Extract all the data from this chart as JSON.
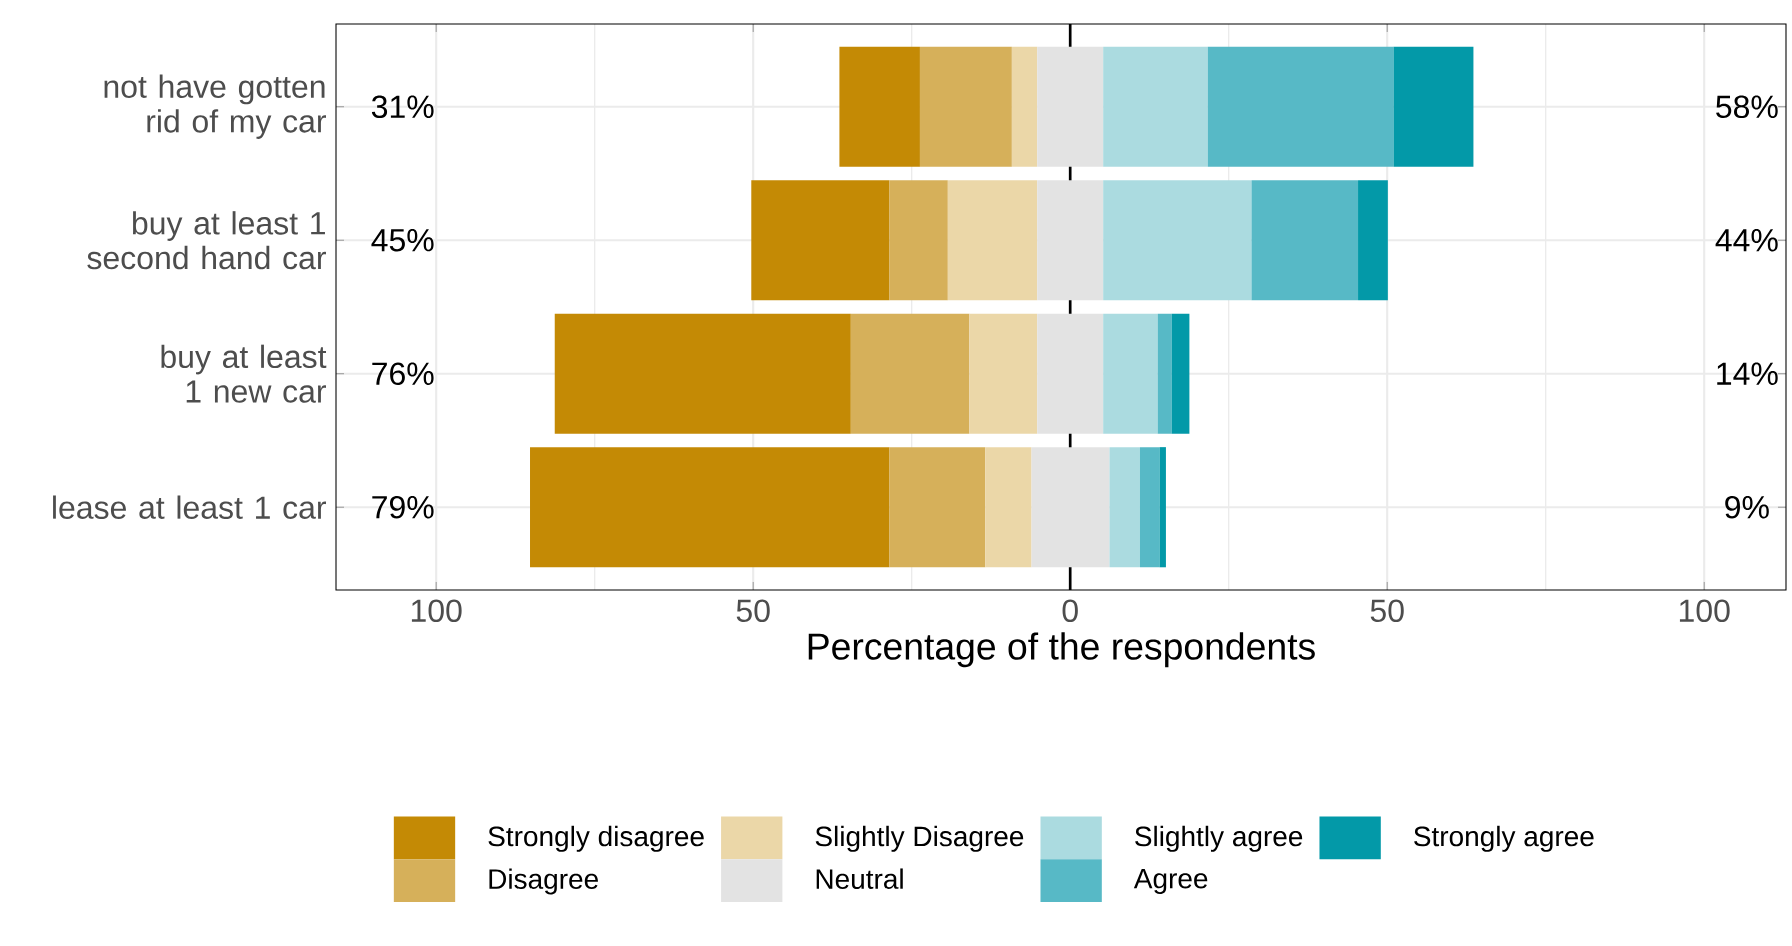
{
  "chart_data": {
    "type": "bar",
    "orientation": "horizontal",
    "xlabel": "Percentage of the respondents",
    "categories": [
      "not have gotten rid of my car",
      "buy at least 1 second hand car",
      "buy at least 1 new car",
      "lease at least 1 car"
    ],
    "series": [
      {
        "name": "Strongly disagree",
        "color": "#c48a05",
        "base": [
          -36.4,
          -50.3,
          -81.3,
          -85.2
        ],
        "values": [
          12.7,
          21.8,
          46.7,
          56.7
        ]
      },
      {
        "name": "Disagree",
        "color": "#d6b05a",
        "base": [
          -23.7,
          -28.5,
          -34.6,
          -28.5
        ],
        "values": [
          14.5,
          9.2,
          18.7,
          15.1
        ]
      },
      {
        "name": "Slightly Disagree",
        "color": "#ebd7a8",
        "base": [
          -9.2,
          -19.3,
          -15.9,
          -13.4
        ],
        "values": [
          4.0,
          14.1,
          10.7,
          7.3
        ]
      },
      {
        "name": "Neutral",
        "color": "#e3e3e3",
        "base": [
          -5.2,
          -5.2,
          -5.2,
          -6.1
        ],
        "values": [
          10.4,
          10.4,
          10.4,
          12.3
        ]
      },
      {
        "name": "Slightly agree",
        "color": "#abdbe0",
        "base": [
          5.2,
          5.2,
          5.2,
          6.2
        ],
        "values": [
          16.5,
          23.4,
          8.6,
          4.8
        ]
      },
      {
        "name": "Agree",
        "color": "#57b9c6",
        "base": [
          21.7,
          28.6,
          13.8,
          11.0
        ],
        "values": [
          29.3,
          16.8,
          2.2,
          3.1
        ]
      },
      {
        "name": "Strongly agree",
        "color": "#0399a8",
        "base": [
          51.0,
          45.4,
          16.0,
          14.1
        ],
        "values": [
          12.6,
          4.7,
          2.8,
          1.0
        ]
      }
    ],
    "xlim": [
      -115.8,
      112.9
    ],
    "xticks": [
      {
        "value": -100,
        "label": "100"
      },
      {
        "value": -50,
        "label": "50"
      },
      0,
      50,
      100
    ],
    "ref_lines": [
      {
        "axis": "x",
        "value": 0,
        "color": "#000000"
      }
    ],
    "annotations": [
      "31%",
      "58%",
      "45%",
      "44%",
      "76%",
      "14%",
      "79%",
      "9%"
    ],
    "grid": true,
    "legend": "bottom"
  }
}
